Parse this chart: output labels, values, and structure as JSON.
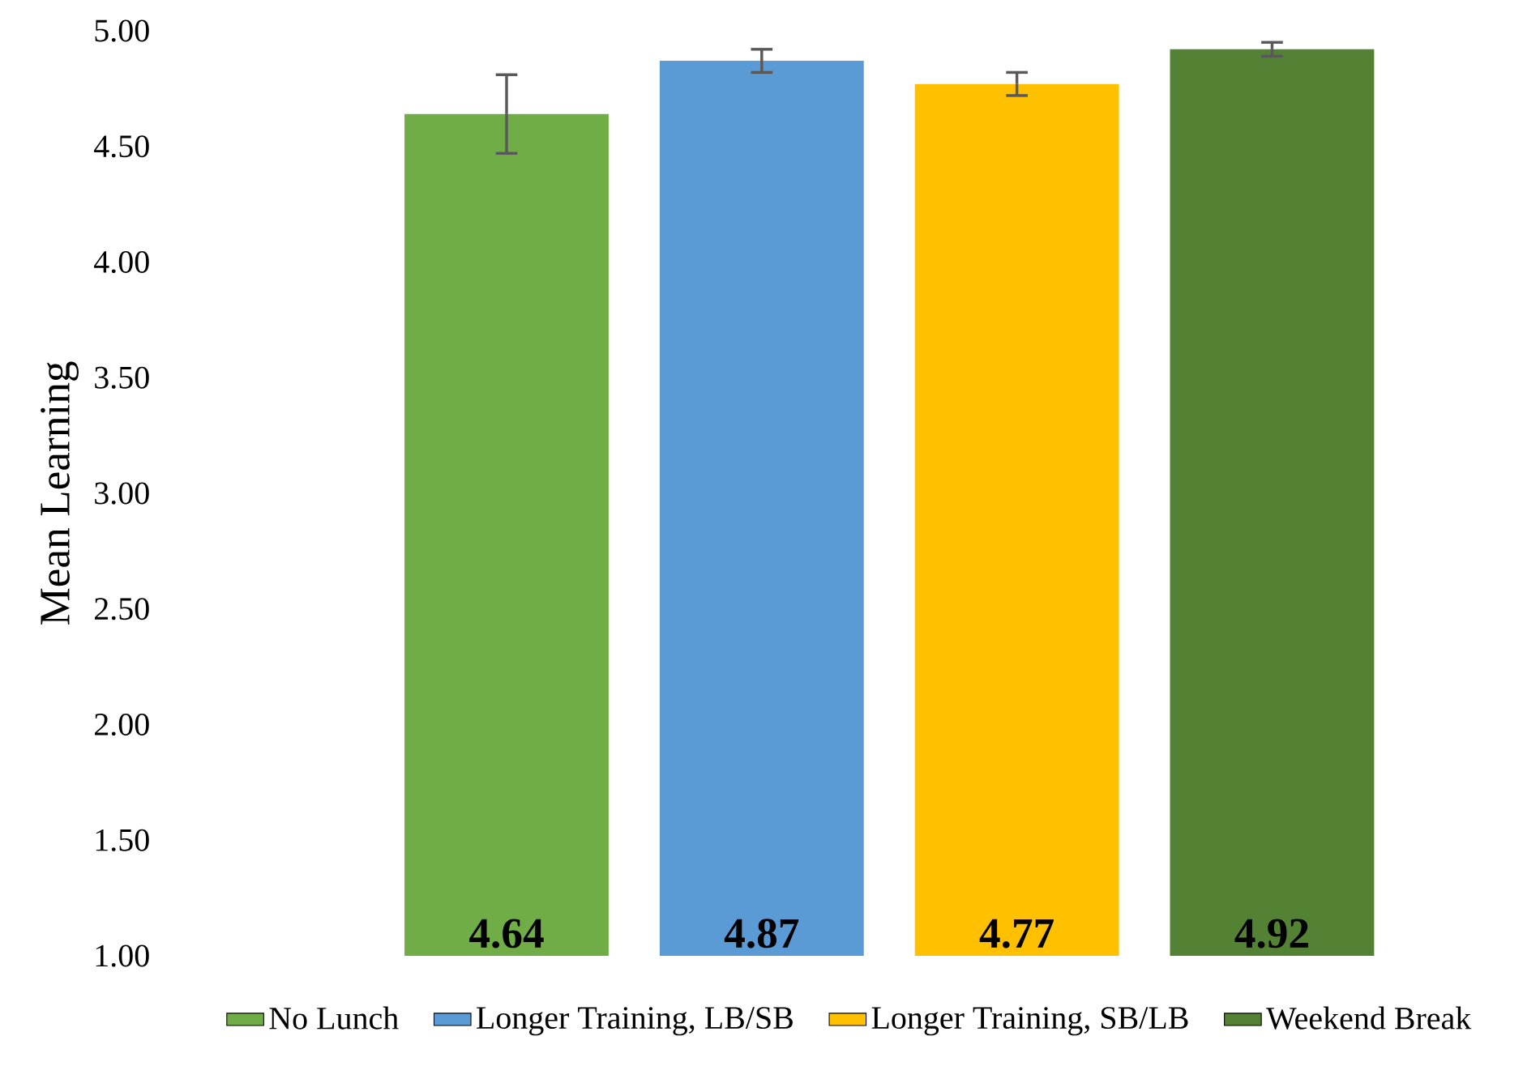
{
  "chart_data": {
    "type": "bar",
    "ylabel": "Mean Learning",
    "categories": [
      null
    ],
    "series": [
      {
        "name": "No Lunch",
        "color": "#70ad47",
        "values": [
          4.64
        ],
        "errors": [
          0.17
        ]
      },
      {
        "name": "Longer Training, LB/SB",
        "color": "#5b9bd5",
        "values": [
          4.87
        ],
        "errors": [
          0.05
        ]
      },
      {
        "name": "Longer Training, SB/LB",
        "color": "#ffc000",
        "values": [
          4.77
        ],
        "errors": [
          0.05
        ]
      },
      {
        "name": "Weekend Break",
        "color": "#548235",
        "values": [
          4.92
        ],
        "errors": [
          0.03
        ]
      }
    ],
    "ylim": [
      1,
      5
    ],
    "yticks": [
      {
        "value": 1,
        "label": "1.00"
      },
      {
        "value": 1.5,
        "label": "1.50"
      },
      {
        "value": 2,
        "label": "2.00"
      },
      {
        "value": 2.5,
        "label": "2.50"
      },
      {
        "value": 3,
        "label": "3.00"
      },
      {
        "value": 3.5,
        "label": "3.50"
      },
      {
        "value": 4,
        "label": "4.00"
      },
      {
        "value": 4.5,
        "label": "4.50"
      },
      {
        "value": 5,
        "label": "5.00"
      }
    ],
    "data_labels": true,
    "grid": false,
    "legend": "bottom"
  }
}
